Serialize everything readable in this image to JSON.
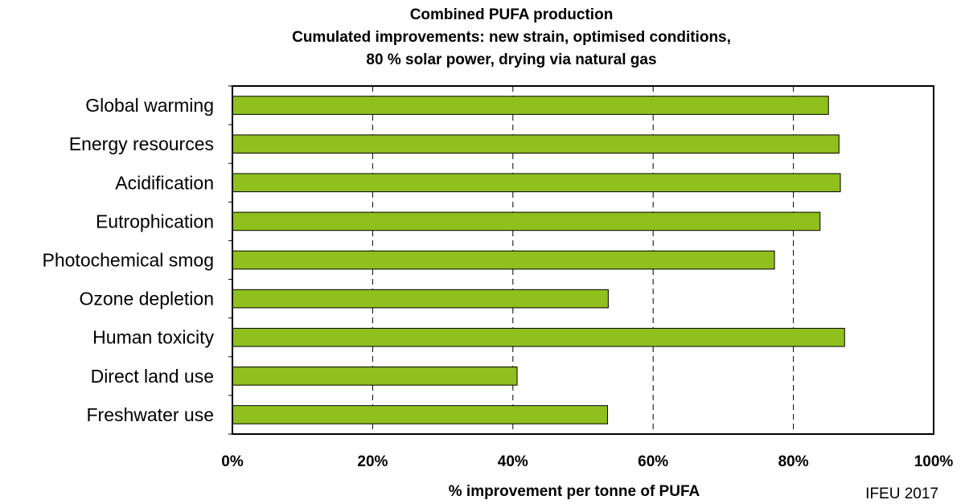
{
  "chart_data": {
    "type": "bar",
    "orientation": "horizontal",
    "title": [
      "Combined PUFA production",
      "Cumulated improvements: new strain, optimised conditions,",
      "80 % solar power, drying via natural gas"
    ],
    "categories": [
      "Global warming",
      "Energy resources",
      "Acidification",
      "Eutrophication",
      "Photochemical smog",
      "Ozone depletion",
      "Human toxicity",
      "Direct land use",
      "Freshwater use"
    ],
    "values": [
      85,
      86.5,
      86.7,
      83.8,
      77.3,
      53.6,
      87.3,
      40.6,
      53.5
    ],
    "xlabel": "% improvement per tonne of PUFA",
    "xlim": [
      0,
      100
    ],
    "xticks": [
      "0%",
      "20%",
      "40%",
      "60%",
      "80%",
      "100%"
    ],
    "grid": "vertical dashed",
    "bar_color": "#8FC01E",
    "source": "IFEU 2017"
  }
}
